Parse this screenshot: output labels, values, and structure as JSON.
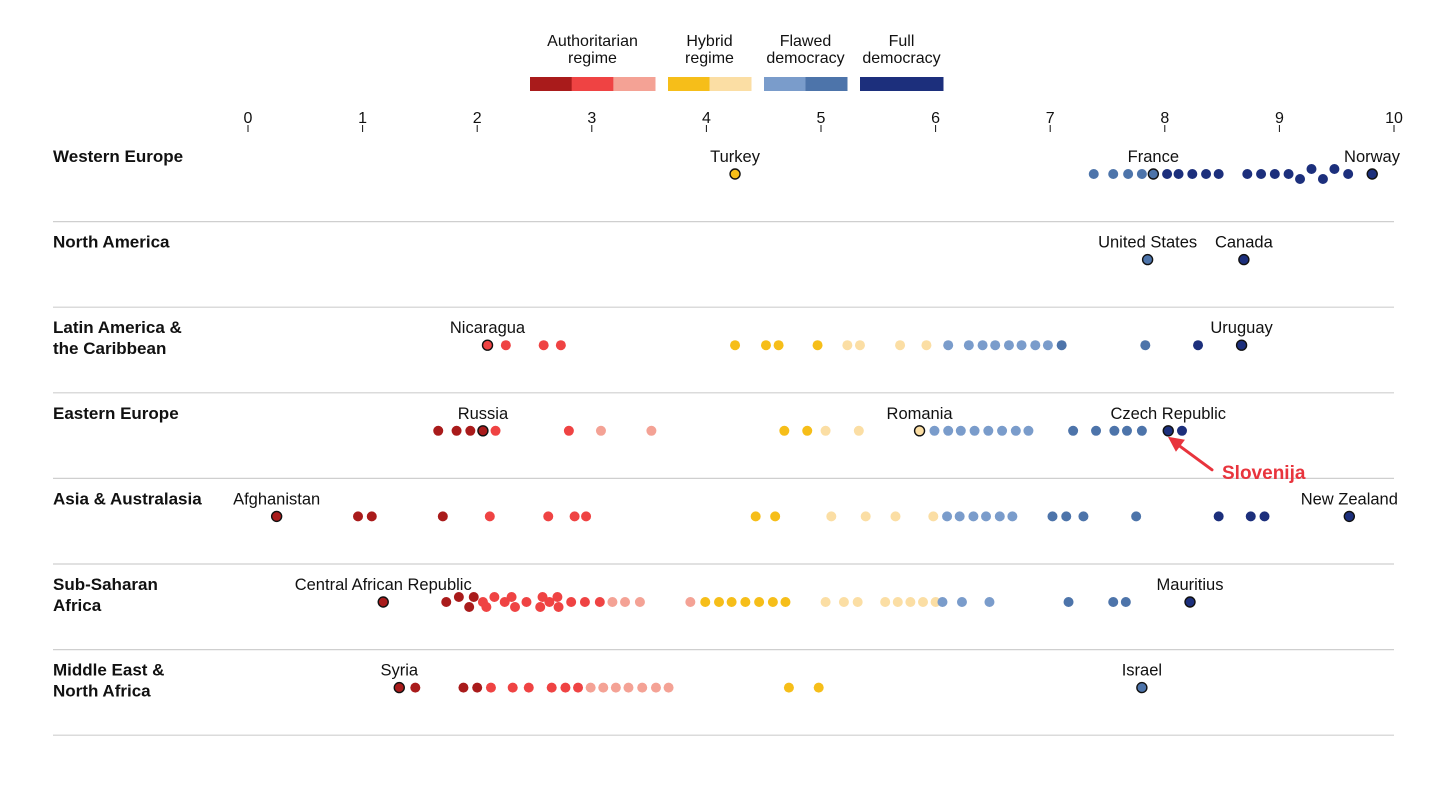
{
  "chart_data": {
    "type": "scatter",
    "xlim": [
      0,
      10
    ],
    "x_ticks": [
      "0",
      "1",
      "2",
      "3",
      "4",
      "5",
      "6",
      "7",
      "8",
      "9",
      "10"
    ],
    "grid": false,
    "legend": {
      "placement": "top-center",
      "entries": [
        {
          "label_lines": [
            "Authoritarian",
            "regime"
          ],
          "colors": [
            "#a91b1b",
            "#ef4343",
            "#f4a295"
          ]
        },
        {
          "label_lines": [
            "Hybrid",
            "regime"
          ],
          "colors": [
            "#f6be19",
            "#fbdea4"
          ]
        },
        {
          "label_lines": [
            "Flawed",
            "democracy"
          ],
          "colors": [
            "#7a9ccb",
            "#4d74aa"
          ]
        },
        {
          "label_lines": [
            "Full",
            "democracy"
          ],
          "colors": [
            "#1c2f7c"
          ]
        }
      ]
    },
    "colors": {
      "a1": "#a91b1b",
      "a2": "#ef4343",
      "a3": "#f4a295",
      "h1": "#f6be19",
      "h2": "#fbdea4",
      "f1": "#7a9ccb",
      "f2": "#4d74aa",
      "full": "#1c2f7c"
    },
    "regions": [
      {
        "label_lines": [
          "Western Europe"
        ],
        "points": [
          {
            "x": 4.25,
            "lane": 0,
            "c": "h1"
          },
          {
            "x": 7.38,
            "lane": 0,
            "c": "f2"
          },
          {
            "x": 7.55,
            "lane": 0,
            "c": "f2"
          },
          {
            "x": 7.68,
            "lane": 0,
            "c": "f2"
          },
          {
            "x": 7.8,
            "lane": 0,
            "c": "f2"
          },
          {
            "x": 7.9,
            "lane": 0,
            "c": "f2"
          },
          {
            "x": 8.02,
            "lane": 0,
            "c": "full"
          },
          {
            "x": 8.12,
            "lane": 0,
            "c": "full"
          },
          {
            "x": 8.24,
            "lane": 0,
            "c": "full"
          },
          {
            "x": 8.36,
            "lane": 0,
            "c": "full"
          },
          {
            "x": 8.47,
            "lane": 0,
            "c": "full"
          },
          {
            "x": 8.72,
            "lane": 0,
            "c": "full"
          },
          {
            "x": 8.84,
            "lane": 0,
            "c": "full"
          },
          {
            "x": 8.96,
            "lane": 0,
            "c": "full"
          },
          {
            "x": 9.08,
            "lane": 0,
            "c": "full"
          },
          {
            "x": 9.18,
            "lane": 1,
            "c": "full"
          },
          {
            "x": 9.28,
            "lane": -1,
            "c": "full"
          },
          {
            "x": 9.38,
            "lane": 1,
            "c": "full"
          },
          {
            "x": 9.48,
            "lane": -1,
            "c": "full"
          },
          {
            "x": 9.6,
            "lane": 0,
            "c": "full"
          },
          {
            "x": 9.81,
            "lane": 0,
            "c": "full"
          }
        ],
        "labels": [
          {
            "text": "Turkey",
            "x": 4.25,
            "c": "h1"
          },
          {
            "text": "France",
            "x": 7.9,
            "c": "f2"
          },
          {
            "text": "Norway",
            "x": 9.81,
            "c": "full",
            "anchor": "end"
          }
        ]
      },
      {
        "label_lines": [
          "North America"
        ],
        "points": [
          {
            "x": 7.85,
            "lane": 0,
            "c": "f2"
          },
          {
            "x": 8.69,
            "lane": 0,
            "c": "full"
          }
        ],
        "labels": [
          {
            "text": "United States",
            "x": 7.85,
            "c": "f2"
          },
          {
            "text": "Canada",
            "x": 8.69,
            "c": "full"
          }
        ]
      },
      {
        "label_lines": [
          "Latin America &",
          "the Caribbean"
        ],
        "points": [
          {
            "x": 2.09,
            "lane": 0,
            "c": "a2"
          },
          {
            "x": 2.25,
            "lane": 0,
            "c": "a2"
          },
          {
            "x": 2.58,
            "lane": 0,
            "c": "a2"
          },
          {
            "x": 2.73,
            "lane": 0,
            "c": "a2"
          },
          {
            "x": 4.25,
            "lane": 0,
            "c": "h1"
          },
          {
            "x": 4.52,
            "lane": 0,
            "c": "h1"
          },
          {
            "x": 4.63,
            "lane": 0,
            "c": "h1"
          },
          {
            "x": 4.97,
            "lane": 0,
            "c": "h1"
          },
          {
            "x": 5.23,
            "lane": 0,
            "c": "h2"
          },
          {
            "x": 5.34,
            "lane": 0,
            "c": "h2"
          },
          {
            "x": 5.69,
            "lane": 0,
            "c": "h2"
          },
          {
            "x": 5.92,
            "lane": 0,
            "c": "h2"
          },
          {
            "x": 6.11,
            "lane": 0,
            "c": "f1"
          },
          {
            "x": 6.29,
            "lane": 0,
            "c": "f1"
          },
          {
            "x": 6.41,
            "lane": 0,
            "c": "f1"
          },
          {
            "x": 6.52,
            "lane": 0,
            "c": "f1"
          },
          {
            "x": 6.64,
            "lane": 0,
            "c": "f1"
          },
          {
            "x": 6.75,
            "lane": 0,
            "c": "f1"
          },
          {
            "x": 6.87,
            "lane": 0,
            "c": "f1"
          },
          {
            "x": 6.98,
            "lane": 0,
            "c": "f1"
          },
          {
            "x": 7.1,
            "lane": 0,
            "c": "f2"
          },
          {
            "x": 7.83,
            "lane": 0,
            "c": "f2"
          },
          {
            "x": 8.29,
            "lane": 0,
            "c": "full"
          },
          {
            "x": 8.67,
            "lane": 0,
            "c": "full"
          }
        ],
        "labels": [
          {
            "text": "Nicaragua",
            "x": 2.09,
            "c": "a2"
          },
          {
            "text": "Uruguay",
            "x": 8.67,
            "c": "full"
          }
        ]
      },
      {
        "label_lines": [
          "Eastern Europe"
        ],
        "points": [
          {
            "x": 1.66,
            "lane": 0,
            "c": "a1"
          },
          {
            "x": 1.82,
            "lane": 0,
            "c": "a1"
          },
          {
            "x": 1.94,
            "lane": 0,
            "c": "a1"
          },
          {
            "x": 2.05,
            "lane": 0,
            "c": "a1"
          },
          {
            "x": 2.16,
            "lane": 0,
            "c": "a2"
          },
          {
            "x": 2.8,
            "lane": 0,
            "c": "a2"
          },
          {
            "x": 3.08,
            "lane": 0,
            "c": "a3"
          },
          {
            "x": 3.52,
            "lane": 0,
            "c": "a3"
          },
          {
            "x": 4.68,
            "lane": 0,
            "c": "h1"
          },
          {
            "x": 4.88,
            "lane": 0,
            "c": "h1"
          },
          {
            "x": 5.04,
            "lane": 0,
            "c": "h2"
          },
          {
            "x": 5.33,
            "lane": 0,
            "c": "h2"
          },
          {
            "x": 5.86,
            "lane": 0,
            "c": "h2"
          },
          {
            "x": 5.99,
            "lane": 0,
            "c": "f1"
          },
          {
            "x": 6.11,
            "lane": 0,
            "c": "f1"
          },
          {
            "x": 6.22,
            "lane": 0,
            "c": "f1"
          },
          {
            "x": 6.34,
            "lane": 0,
            "c": "f1"
          },
          {
            "x": 6.46,
            "lane": 0,
            "c": "f1"
          },
          {
            "x": 6.58,
            "lane": 0,
            "c": "f1"
          },
          {
            "x": 6.7,
            "lane": 0,
            "c": "f1"
          },
          {
            "x": 6.81,
            "lane": 0,
            "c": "f1"
          },
          {
            "x": 7.2,
            "lane": 0,
            "c": "f2"
          },
          {
            "x": 7.4,
            "lane": 0,
            "c": "f2"
          },
          {
            "x": 7.56,
            "lane": 0,
            "c": "f2"
          },
          {
            "x": 7.67,
            "lane": 0,
            "c": "f2"
          },
          {
            "x": 7.8,
            "lane": 0,
            "c": "f2"
          },
          {
            "x": 8.03,
            "lane": 0,
            "c": "full"
          },
          {
            "x": 8.15,
            "lane": 0,
            "c": "full"
          }
        ],
        "labels": [
          {
            "text": "Russia",
            "x": 2.05,
            "c": "a1"
          },
          {
            "text": "Romania",
            "x": 5.86,
            "c": "h2"
          },
          {
            "text": "Czech Republic",
            "x": 8.03,
            "c": "full"
          }
        ]
      },
      {
        "label_lines": [
          "Asia & Australasia"
        ],
        "points": [
          {
            "x": 0.25,
            "lane": 0,
            "c": "a1"
          },
          {
            "x": 0.96,
            "lane": 0,
            "c": "a1"
          },
          {
            "x": 1.08,
            "lane": 0,
            "c": "a1"
          },
          {
            "x": 1.7,
            "lane": 0,
            "c": "a1"
          },
          {
            "x": 2.11,
            "lane": 0,
            "c": "a2"
          },
          {
            "x": 2.62,
            "lane": 0,
            "c": "a2"
          },
          {
            "x": 2.85,
            "lane": 0,
            "c": "a2"
          },
          {
            "x": 2.95,
            "lane": 0,
            "c": "a2"
          },
          {
            "x": 4.43,
            "lane": 0,
            "c": "h1"
          },
          {
            "x": 4.6,
            "lane": 0,
            "c": "h1"
          },
          {
            "x": 5.09,
            "lane": 0,
            "c": "h2"
          },
          {
            "x": 5.39,
            "lane": 0,
            "c": "h2"
          },
          {
            "x": 5.65,
            "lane": 0,
            "c": "h2"
          },
          {
            "x": 5.98,
            "lane": 0,
            "c": "h2"
          },
          {
            "x": 6.1,
            "lane": 0,
            "c": "f1"
          },
          {
            "x": 6.21,
            "lane": 0,
            "c": "f1"
          },
          {
            "x": 6.33,
            "lane": 0,
            "c": "f1"
          },
          {
            "x": 6.44,
            "lane": 0,
            "c": "f1"
          },
          {
            "x": 6.56,
            "lane": 0,
            "c": "f1"
          },
          {
            "x": 6.67,
            "lane": 0,
            "c": "f1"
          },
          {
            "x": 7.02,
            "lane": 0,
            "c": "f2"
          },
          {
            "x": 7.14,
            "lane": 0,
            "c": "f2"
          },
          {
            "x": 7.29,
            "lane": 0,
            "c": "f2"
          },
          {
            "x": 7.75,
            "lane": 0,
            "c": "f2"
          },
          {
            "x": 8.47,
            "lane": 0,
            "c": "full"
          },
          {
            "x": 8.75,
            "lane": 0,
            "c": "full"
          },
          {
            "x": 8.87,
            "lane": 0,
            "c": "full"
          },
          {
            "x": 9.61,
            "lane": 0,
            "c": "full"
          }
        ],
        "labels": [
          {
            "text": "Afghanistan",
            "x": 0.25,
            "c": "a1"
          },
          {
            "text": "New Zealand",
            "x": 9.61,
            "c": "full"
          }
        ]
      },
      {
        "label_lines": [
          "Sub-Saharan",
          "Africa"
        ],
        "points": [
          {
            "x": 1.18,
            "lane": 0,
            "c": "a1"
          },
          {
            "x": 1.73,
            "lane": 0,
            "c": "a1"
          },
          {
            "x": 1.84,
            "lane": -1,
            "c": "a1"
          },
          {
            "x": 1.93,
            "lane": 1,
            "c": "a1"
          },
          {
            "x": 1.97,
            "lane": -1,
            "c": "a1"
          },
          {
            "x": 2.05,
            "lane": 0,
            "c": "a2"
          },
          {
            "x": 2.08,
            "lane": 1,
            "c": "a2"
          },
          {
            "x": 2.15,
            "lane": -1,
            "c": "a2"
          },
          {
            "x": 2.24,
            "lane": 0,
            "c": "a2"
          },
          {
            "x": 2.3,
            "lane": -1,
            "c": "a2"
          },
          {
            "x": 2.33,
            "lane": 1,
            "c": "a2"
          },
          {
            "x": 2.43,
            "lane": 0,
            "c": "a2"
          },
          {
            "x": 2.55,
            "lane": 1,
            "c": "a2"
          },
          {
            "x": 2.57,
            "lane": -1,
            "c": "a2"
          },
          {
            "x": 2.63,
            "lane": 0,
            "c": "a2"
          },
          {
            "x": 2.71,
            "lane": 1,
            "c": "a2"
          },
          {
            "x": 2.7,
            "lane": -1,
            "c": "a2"
          },
          {
            "x": 2.82,
            "lane": 0,
            "c": "a2"
          },
          {
            "x": 2.94,
            "lane": 0,
            "c": "a2"
          },
          {
            "x": 3.07,
            "lane": 0,
            "c": "a2"
          },
          {
            "x": 3.18,
            "lane": 0,
            "c": "a3"
          },
          {
            "x": 3.29,
            "lane": 0,
            "c": "a3"
          },
          {
            "x": 3.42,
            "lane": 0,
            "c": "a3"
          },
          {
            "x": 3.86,
            "lane": 0,
            "c": "a3"
          },
          {
            "x": 3.99,
            "lane": 0,
            "c": "h1"
          },
          {
            "x": 4.11,
            "lane": 0,
            "c": "h1"
          },
          {
            "x": 4.22,
            "lane": 0,
            "c": "h1"
          },
          {
            "x": 4.34,
            "lane": 0,
            "c": "h1"
          },
          {
            "x": 4.46,
            "lane": 0,
            "c": "h1"
          },
          {
            "x": 4.58,
            "lane": 0,
            "c": "h1"
          },
          {
            "x": 4.69,
            "lane": 0,
            "c": "h1"
          },
          {
            "x": 5.04,
            "lane": 0,
            "c": "h2"
          },
          {
            "x": 5.2,
            "lane": 0,
            "c": "h2"
          },
          {
            "x": 5.32,
            "lane": 0,
            "c": "h2"
          },
          {
            "x": 5.56,
            "lane": 0,
            "c": "h2"
          },
          {
            "x": 5.67,
            "lane": 0,
            "c": "h2"
          },
          {
            "x": 5.78,
            "lane": 0,
            "c": "h2"
          },
          {
            "x": 5.89,
            "lane": 0,
            "c": "h2"
          },
          {
            "x": 6.0,
            "lane": 0,
            "c": "h2"
          },
          {
            "x": 6.06,
            "lane": 0,
            "c": "f1"
          },
          {
            "x": 6.23,
            "lane": 0,
            "c": "f1"
          },
          {
            "x": 6.47,
            "lane": 0,
            "c": "f1"
          },
          {
            "x": 7.16,
            "lane": 0,
            "c": "f2"
          },
          {
            "x": 7.55,
            "lane": 0,
            "c": "f2"
          },
          {
            "x": 7.66,
            "lane": 0,
            "c": "f2"
          },
          {
            "x": 8.22,
            "lane": 0,
            "c": "full"
          }
        ],
        "labels": [
          {
            "text": "Central African Republic",
            "x": 1.18,
            "c": "a1"
          },
          {
            "text": "Mauritius",
            "x": 8.22,
            "c": "full"
          }
        ]
      },
      {
        "label_lines": [
          "Middle East &",
          "North Africa"
        ],
        "points": [
          {
            "x": 1.32,
            "lane": 0,
            "c": "a1"
          },
          {
            "x": 1.46,
            "lane": 0,
            "c": "a1"
          },
          {
            "x": 1.88,
            "lane": 0,
            "c": "a1"
          },
          {
            "x": 2.0,
            "lane": 0,
            "c": "a1"
          },
          {
            "x": 2.12,
            "lane": 0,
            "c": "a2"
          },
          {
            "x": 2.31,
            "lane": 0,
            "c": "a2"
          },
          {
            "x": 2.45,
            "lane": 0,
            "c": "a2"
          },
          {
            "x": 2.65,
            "lane": 0,
            "c": "a2"
          },
          {
            "x": 2.77,
            "lane": 0,
            "c": "a2"
          },
          {
            "x": 2.88,
            "lane": 0,
            "c": "a2"
          },
          {
            "x": 2.99,
            "lane": 0,
            "c": "a3"
          },
          {
            "x": 3.1,
            "lane": 0,
            "c": "a3"
          },
          {
            "x": 3.21,
            "lane": 0,
            "c": "a3"
          },
          {
            "x": 3.32,
            "lane": 0,
            "c": "a3"
          },
          {
            "x": 3.44,
            "lane": 0,
            "c": "a3"
          },
          {
            "x": 3.56,
            "lane": 0,
            "c": "a3"
          },
          {
            "x": 3.67,
            "lane": 0,
            "c": "a3"
          },
          {
            "x": 4.72,
            "lane": 0,
            "c": "h1"
          },
          {
            "x": 4.98,
            "lane": 0,
            "c": "h1"
          },
          {
            "x": 7.8,
            "lane": 0,
            "c": "f2"
          }
        ],
        "labels": [
          {
            "text": "Syria",
            "x": 1.32,
            "c": "a1"
          },
          {
            "text": "Israel",
            "x": 7.8,
            "c": "f2"
          }
        ]
      }
    ],
    "annotation": {
      "text": "Slovenija",
      "region": 3,
      "x": 7.94
    }
  }
}
